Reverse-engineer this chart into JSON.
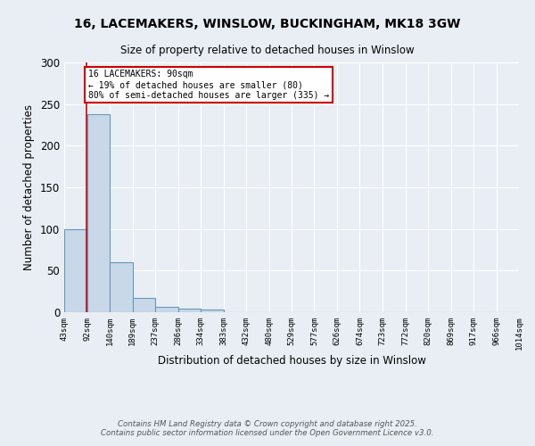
{
  "title": "16, LACEMAKERS, WINSLOW, BUCKINGHAM, MK18 3GW",
  "subtitle": "Size of property relative to detached houses in Winslow",
  "xlabel": "Distribution of detached houses by size in Winslow",
  "ylabel": "Number of detached properties",
  "footnote1": "Contains HM Land Registry data © Crown copyright and database right 2025.",
  "footnote2": "Contains public sector information licensed under the Open Government Licence v3.0.",
  "bin_edges": [
    43,
    92,
    140,
    189,
    237,
    286,
    334,
    383,
    432,
    480,
    529,
    577,
    626,
    674,
    723,
    772,
    820,
    869,
    917,
    966,
    1014
  ],
  "bar_heights": [
    100,
    238,
    60,
    17,
    6,
    4,
    3,
    0,
    0,
    0,
    0,
    0,
    0,
    0,
    0,
    0,
    0,
    0,
    0,
    0
  ],
  "bar_color": "#c8d8e8",
  "bar_edge_color": "#6699bb",
  "property_size": 90,
  "vline_color": "#cc0000",
  "annotation_text": "16 LACEMAKERS: 90sqm\n← 19% of detached houses are smaller (80)\n80% of semi-detached houses are larger (335) →",
  "annotation_box_color": "#cc0000",
  "annotation_bg": "#ffffff",
  "ylim": [
    0,
    300
  ],
  "background_color": "#e8eef4",
  "grid_color": "#ffffff",
  "yticks": [
    0,
    50,
    100,
    150,
    200,
    250,
    300
  ]
}
